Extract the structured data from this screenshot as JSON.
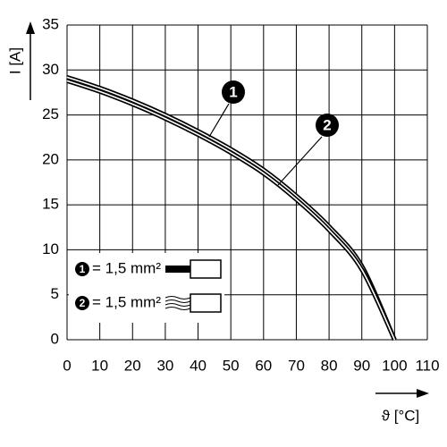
{
  "chart_data": {
    "type": "line",
    "y_label": "I [A]",
    "x_label": "ϑ [°C]",
    "x": [
      0,
      10,
      20,
      30,
      40,
      50,
      60,
      70,
      80,
      90,
      100
    ],
    "series": [
      {
        "name": "1",
        "legend": "= 1,5 mm²",
        "color": "#000000",
        "values": [
          29.2,
          28.0,
          26.6,
          25.0,
          23.2,
          21.2,
          18.9,
          16.0,
          12.6,
          8.2,
          0
        ]
      },
      {
        "name": "2",
        "legend": "= 1,5 mm²",
        "color": "#000000",
        "values": [
          28.8,
          27.6,
          26.2,
          24.6,
          22.8,
          20.8,
          18.5,
          15.6,
          12.2,
          7.8,
          0
        ]
      }
    ],
    "xlim": [
      0,
      110
    ],
    "ylim": [
      0,
      35
    ],
    "xticks": [
      0,
      10,
      20,
      30,
      40,
      50,
      60,
      70,
      80,
      90,
      100,
      110
    ],
    "yticks": [
      0,
      5,
      10,
      15,
      20,
      25,
      30,
      35
    ],
    "grid": true
  }
}
